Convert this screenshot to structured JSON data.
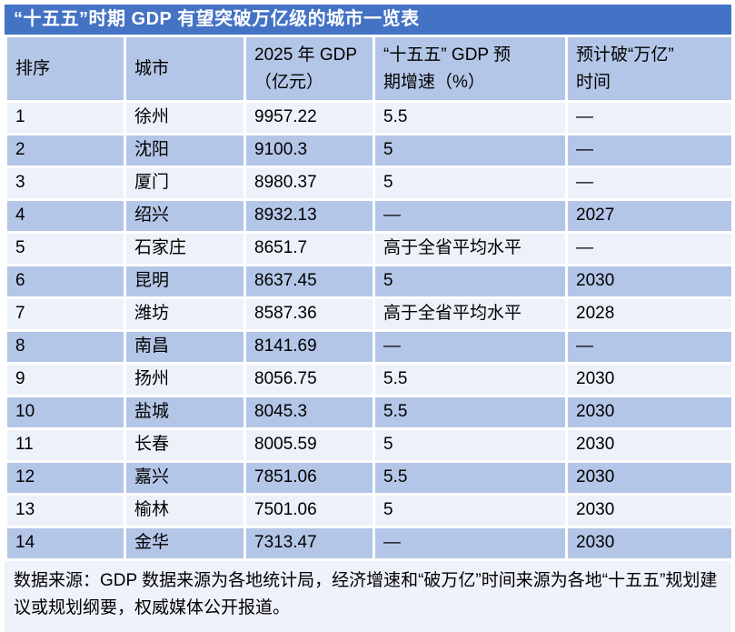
{
  "title": "“十五五”时期 GDP 有望突破万亿级的城市一览表",
  "chart_data": {
    "type": "table",
    "title": "“十五五”时期 GDP 有望突破万亿级的城市一览表",
    "columns": [
      "排序",
      "城市",
      "2025 年 GDP\n（亿元）",
      "“十五五” GDP 预\n期增速（%）",
      "预计破“万亿”\n时间"
    ],
    "column_meanings": [
      "排序",
      "城市",
      "2025 年 GDP（亿元）",
      "“十五五”GDP 预期增速（%）",
      "预计破“万亿”时间"
    ],
    "rows": [
      [
        "1",
        "徐州",
        "9957.22",
        "5.5",
        "—"
      ],
      [
        "2",
        "沈阳",
        "9100.3",
        "5",
        "—"
      ],
      [
        "3",
        "厦门",
        "8980.37",
        "5",
        "—"
      ],
      [
        "4",
        "绍兴",
        "8932.13",
        "—",
        "2027"
      ],
      [
        "5",
        "石家庄",
        "8651.7",
        "高于全省平均水平",
        "—"
      ],
      [
        "6",
        "昆明",
        "8637.45",
        "5",
        "2030"
      ],
      [
        "7",
        "潍坊",
        "8587.36",
        "高于全省平均水平",
        "2028"
      ],
      [
        "8",
        "南昌",
        "8141.69",
        "—",
        "—"
      ],
      [
        "9",
        "扬州",
        "8056.75",
        "5.5",
        "2030"
      ],
      [
        "10",
        "盐城",
        "8045.3",
        "5.5",
        "2030"
      ],
      [
        "11",
        "长春",
        "8005.59",
        "5",
        "2030"
      ],
      [
        "12",
        "嘉兴",
        "7851.06",
        "5.5",
        "2030"
      ],
      [
        "13",
        "榆林",
        "7501.06",
        "5",
        "2030"
      ],
      [
        "14",
        "金华",
        "7313.47",
        "—",
        "2030"
      ]
    ]
  },
  "footer": "数据来源：GDP 数据来源为各地统计局，经济增速和“破万亿”时间来源为各地“十五五”规划建议或规划纲要，权威媒体公开报道。",
  "colors": {
    "title_bar": "#4472C4",
    "title_text": "#FFFFFF",
    "band_dark": "#B4C6E7",
    "band_light": "#EDF1F9",
    "footer_bg": "#EFF2FA",
    "grid_line": "#FFFFFF",
    "body_text": "#000000"
  }
}
